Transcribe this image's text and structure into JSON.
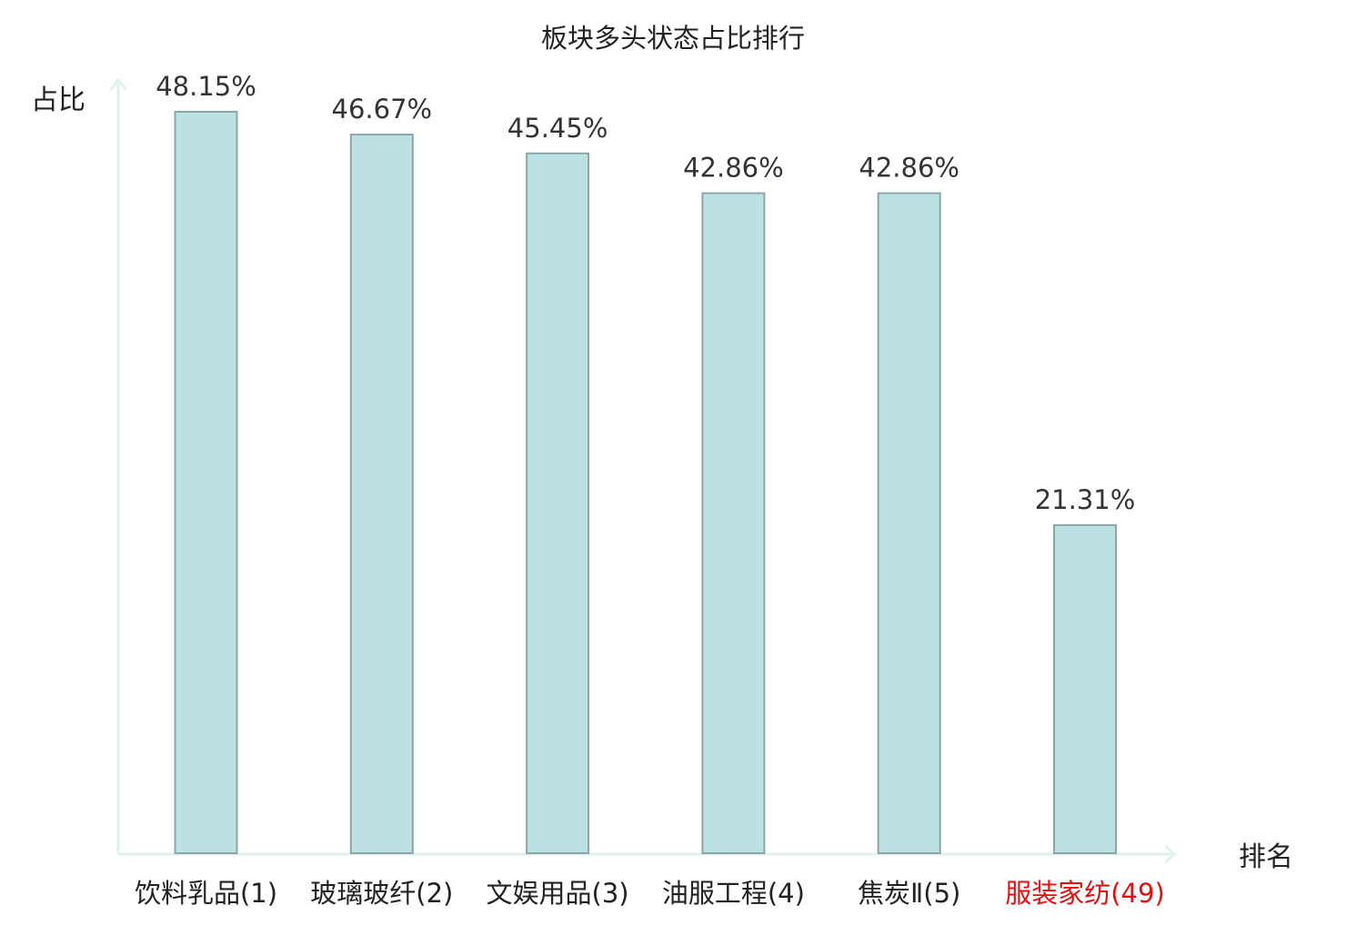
{
  "chart_data": {
    "type": "bar",
    "title": "板块多头状态占比排行",
    "ylabel": "占比",
    "xlabel": "排名",
    "categories": [
      "饮料乳品(1)",
      "玻璃玻纤(2)",
      "文娱用品(3)",
      "油服工程(4)",
      "焦炭Ⅱ(5)",
      "服装家纺(49)"
    ],
    "values": [
      48.15,
      46.67,
      45.45,
      42.86,
      42.86,
      21.31
    ],
    "value_labels": [
      "48.15%",
      "46.67%",
      "45.45%",
      "42.86%",
      "42.86%",
      "21.31%"
    ],
    "highlight_index": 5,
    "ylim": [
      0,
      48.15
    ],
    "grid": false,
    "colors": {
      "bar_fill": "#bce1e3",
      "bar_stroke": "#8aa6a8",
      "axis": "#dff2ef",
      "highlight_text": "#e01010",
      "text": "#222222"
    }
  }
}
